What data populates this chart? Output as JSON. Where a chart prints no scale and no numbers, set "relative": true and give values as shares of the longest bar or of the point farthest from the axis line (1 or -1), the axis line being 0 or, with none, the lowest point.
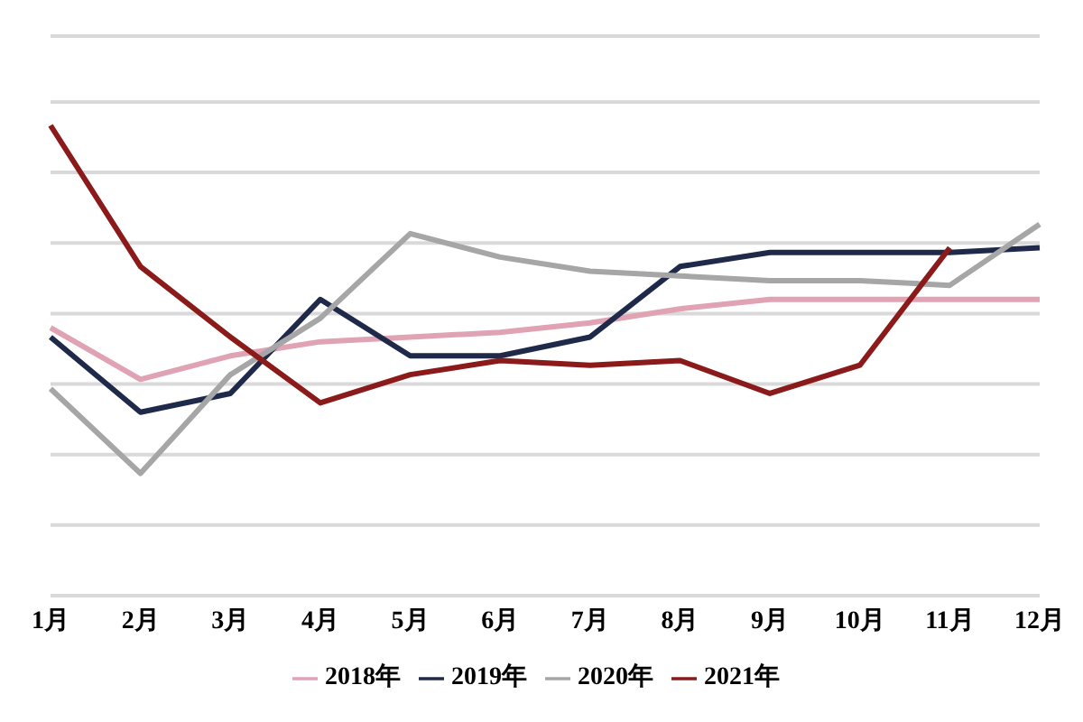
{
  "chart_data": {
    "type": "line",
    "relative": true,
    "categories": [
      "1月",
      "2月",
      "3月",
      "4月",
      "5月",
      "6月",
      "7月",
      "8月",
      "9月",
      "10月",
      "11月",
      "12月"
    ],
    "series": [
      {
        "name": "2018年",
        "color": "#e0a3b3",
        "values": [
          0.57,
          0.46,
          0.51,
          0.54,
          0.55,
          0.56,
          0.58,
          0.61,
          0.63,
          0.63,
          0.63,
          0.63
        ]
      },
      {
        "name": "2019年",
        "color": "#1f2a4a",
        "values": [
          0.55,
          0.39,
          0.43,
          0.63,
          0.51,
          0.51,
          0.55,
          0.7,
          0.73,
          0.73,
          0.73,
          0.74
        ]
      },
      {
        "name": "2020年",
        "color": "#a6a6a6",
        "values": [
          0.44,
          0.26,
          0.47,
          0.59,
          0.77,
          0.72,
          0.69,
          0.68,
          0.67,
          0.67,
          0.66,
          0.79
        ]
      },
      {
        "name": "2021年",
        "color": "#8b1a1a",
        "values": [
          1,
          0.7,
          0.55,
          0.41,
          0.47,
          0.5,
          0.49,
          0.5,
          0.43,
          0.49,
          0.74,
          null
        ]
      }
    ],
    "grid": "y",
    "legend": "bottom",
    "marker": "none",
    "line_style": "solid"
  }
}
